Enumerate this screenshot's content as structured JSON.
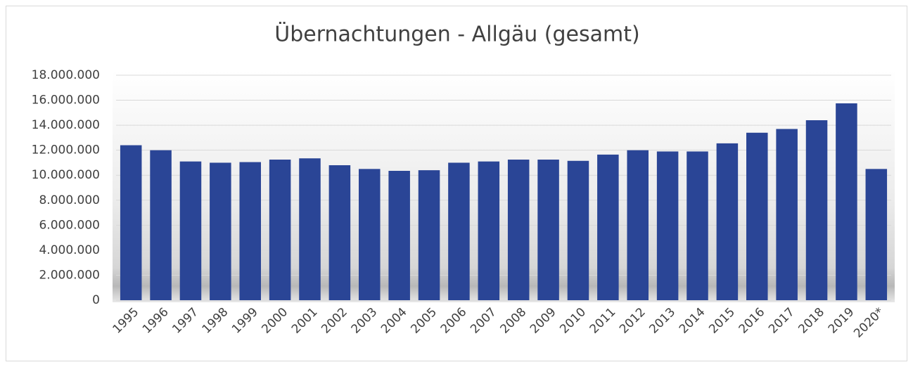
{
  "chart_data": {
    "type": "bar",
    "title": "Übernachtungen - Allgäu (gesamt)",
    "categories": [
      "1995",
      "1996",
      "1997",
      "1998",
      "1999",
      "2000",
      "2001",
      "2002",
      "2003",
      "2004",
      "2005",
      "2006",
      "2007",
      "2008",
      "2009",
      "2010",
      "2011",
      "2012",
      "2013",
      "2014",
      "2015",
      "2016",
      "2017",
      "2018",
      "2019",
      "2020*"
    ],
    "values": [
      12400000,
      12000000,
      11100000,
      11000000,
      11050000,
      11250000,
      11350000,
      10800000,
      10500000,
      10350000,
      10400000,
      11000000,
      11100000,
      11250000,
      11250000,
      11150000,
      11650000,
      12000000,
      11900000,
      11900000,
      12550000,
      13400000,
      13700000,
      14400000,
      15750000,
      10500000
    ],
    "color": "#2a4596",
    "ylim": [
      0,
      18000000
    ],
    "yticks": [
      0,
      {
        "value": 2000000,
        "label": "2.000.000"
      },
      {
        "value": 4000000,
        "label": "4.000.000"
      },
      {
        "value": 6000000,
        "label": "6.000.000"
      },
      {
        "value": 8000000,
        "label": "8.000.000"
      },
      {
        "value": 10000000,
        "label": "10.000.000"
      },
      {
        "value": 12000000,
        "label": "12.000.000"
      },
      {
        "value": 14000000,
        "label": "14.000.000"
      },
      {
        "value": 16000000,
        "label": "16.000.000"
      },
      {
        "value": 18000000,
        "label": "18.000.000"
      }
    ],
    "grid": true
  }
}
